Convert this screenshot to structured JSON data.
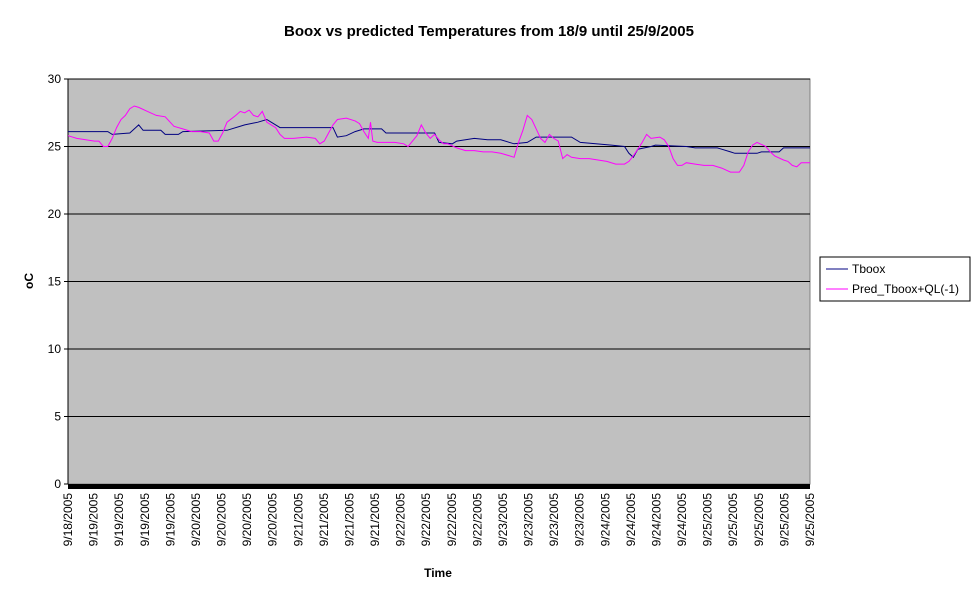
{
  "chart_data": {
    "type": "line",
    "title": "Boox vs predicted Temperatures from 18/9 until 25/9/2005",
    "xlabel": "Time",
    "ylabel": "oC",
    "ylim": [
      0,
      30
    ],
    "yticks": [
      0,
      5,
      10,
      15,
      20,
      25,
      30
    ],
    "grid": true,
    "legend_position": "right",
    "plot_background": "#c0c0c0",
    "x_tick_labels": [
      "9/18/2005",
      "9/19/2005",
      "9/19/2005",
      "9/19/2005",
      "9/19/2005",
      "9/20/2005",
      "9/20/2005",
      "9/20/2005",
      "9/20/2005",
      "9/21/2005",
      "9/21/2005",
      "9/21/2005",
      "9/21/2005",
      "9/22/2005",
      "9/22/2005",
      "9/22/2005",
      "9/22/2005",
      "9/23/2005",
      "9/23/2005",
      "9/23/2005",
      "9/23/2005",
      "9/24/2005",
      "9/24/2005",
      "9/24/2005",
      "9/24/2005",
      "9/25/2005",
      "9/25/2005",
      "9/25/2005",
      "9/25/2005",
      "9/25/2005"
    ],
    "x_range": [
      "2005-09-18 00:00",
      "2005-09-25 00:00"
    ],
    "series": [
      {
        "name": "Tboox",
        "color": "#000080",
        "points": [
          [
            "2005-09-18 00:00",
            26.1
          ],
          [
            "2005-09-18 09:00",
            26.1
          ],
          [
            "2005-09-18 10:00",
            25.9
          ],
          [
            "2005-09-18 14:00",
            26.0
          ],
          [
            "2005-09-18 15:00",
            26.3
          ],
          [
            "2005-09-18 16:00",
            26.6
          ],
          [
            "2005-09-18 17:00",
            26.2
          ],
          [
            "2005-09-18 21:00",
            26.2
          ],
          [
            "2005-09-18 22:00",
            25.9
          ],
          [
            "2005-09-19 01:00",
            25.9
          ],
          [
            "2005-09-19 02:00",
            26.1
          ],
          [
            "2005-09-19 12:00",
            26.2
          ],
          [
            "2005-09-19 16:00",
            26.6
          ],
          [
            "2005-09-19 19:00",
            26.8
          ],
          [
            "2005-09-19 21:00",
            27.0
          ],
          [
            "2005-09-19 22:00",
            26.8
          ],
          [
            "2005-09-20 00:00",
            26.4
          ],
          [
            "2005-09-20 12:00",
            26.4
          ],
          [
            "2005-09-20 13:00",
            25.7
          ],
          [
            "2005-09-20 15:00",
            25.8
          ],
          [
            "2005-09-20 17:00",
            26.1
          ],
          [
            "2005-09-20 19:00",
            26.3
          ],
          [
            "2005-09-20 23:00",
            26.3
          ],
          [
            "2005-09-21 00:00",
            26.0
          ],
          [
            "2005-09-21 11:00",
            26.0
          ],
          [
            "2005-09-21 12:00",
            25.3
          ],
          [
            "2005-09-21 15:00",
            25.2
          ],
          [
            "2005-09-21 16:00",
            25.4
          ],
          [
            "2005-09-21 20:00",
            25.6
          ],
          [
            "2005-09-21 23:00",
            25.5
          ],
          [
            "2005-09-22 02:00",
            25.5
          ],
          [
            "2005-09-22 05:00",
            25.2
          ],
          [
            "2005-09-22 08:00",
            25.3
          ],
          [
            "2005-09-22 10:00",
            25.7
          ],
          [
            "2005-09-22 18:00",
            25.7
          ],
          [
            "2005-09-22 20:00",
            25.3
          ],
          [
            "2005-09-23 03:00",
            25.1
          ],
          [
            "2005-09-23 06:00",
            25.0
          ],
          [
            "2005-09-23 07:00",
            24.5
          ],
          [
            "2005-09-23 08:00",
            24.2
          ],
          [
            "2005-09-23 09:00",
            24.8
          ],
          [
            "2005-09-23 12:00",
            25.0
          ],
          [
            "2005-09-23 13:00",
            25.1
          ],
          [
            "2005-09-23 20:00",
            25.0
          ],
          [
            "2005-09-23 22:00",
            24.9
          ],
          [
            "2005-09-24 03:00",
            24.9
          ],
          [
            "2005-09-24 04:00",
            24.8
          ],
          [
            "2005-09-24 06:00",
            24.6
          ],
          [
            "2005-09-24 07:00",
            24.5
          ],
          [
            "2005-09-24 12:00",
            24.5
          ],
          [
            "2005-09-24 13:00",
            24.6
          ],
          [
            "2005-09-24 17:00",
            24.6
          ],
          [
            "2005-09-24 18:00",
            24.9
          ],
          [
            "2005-09-25 00:00",
            24.9
          ]
        ]
      },
      {
        "name": "Pred_Tboox+QL(-1)",
        "color": "#ff00ff",
        "points": [
          [
            "2005-09-18 00:00",
            25.8
          ],
          [
            "2005-09-18 02:00",
            25.6
          ],
          [
            "2005-09-18 04:00",
            25.5
          ],
          [
            "2005-09-18 06:00",
            25.4
          ],
          [
            "2005-09-18 07:00",
            25.4
          ],
          [
            "2005-09-18 08:00",
            25.0
          ],
          [
            "2005-09-18 09:00",
            25.0
          ],
          [
            "2005-09-18 10:00",
            25.6
          ],
          [
            "2005-09-18 11:00",
            26.4
          ],
          [
            "2005-09-18 12:00",
            27.0
          ],
          [
            "2005-09-18 13:00",
            27.3
          ],
          [
            "2005-09-18 14:00",
            27.8
          ],
          [
            "2005-09-18 15:00",
            28.0
          ],
          [
            "2005-09-18 16:00",
            27.9
          ],
          [
            "2005-09-18 18:00",
            27.6
          ],
          [
            "2005-09-18 20:00",
            27.3
          ],
          [
            "2005-09-18 22:00",
            27.2
          ],
          [
            "2005-09-19 00:00",
            26.5
          ],
          [
            "2005-09-19 02:00",
            26.3
          ],
          [
            "2005-09-19 04:00",
            26.1
          ],
          [
            "2005-09-19 06:00",
            26.1
          ],
          [
            "2005-09-19 08:00",
            26.0
          ],
          [
            "2005-09-19 09:00",
            25.4
          ],
          [
            "2005-09-19 10:00",
            25.4
          ],
          [
            "2005-09-19 11:00",
            26.0
          ],
          [
            "2005-09-19 12:00",
            26.8
          ],
          [
            "2005-09-19 14:00",
            27.3
          ],
          [
            "2005-09-19 15:00",
            27.6
          ],
          [
            "2005-09-19 16:00",
            27.5
          ],
          [
            "2005-09-19 17:00",
            27.7
          ],
          [
            "2005-09-19 18:00",
            27.3
          ],
          [
            "2005-09-19 19:00",
            27.2
          ],
          [
            "2005-09-19 20:00",
            27.6
          ],
          [
            "2005-09-19 21:00",
            26.8
          ],
          [
            "2005-09-19 22:00",
            26.6
          ],
          [
            "2005-09-19 23:00",
            26.4
          ],
          [
            "2005-09-20 00:00",
            25.9
          ],
          [
            "2005-09-20 01:00",
            25.6
          ],
          [
            "2005-09-20 03:00",
            25.6
          ],
          [
            "2005-09-20 06:00",
            25.7
          ],
          [
            "2005-09-20 08:00",
            25.6
          ],
          [
            "2005-09-20 09:00",
            25.2
          ],
          [
            "2005-09-20 10:00",
            25.4
          ],
          [
            "2005-09-20 11:00",
            26.0
          ],
          [
            "2005-09-20 12:00",
            26.6
          ],
          [
            "2005-09-20 13:00",
            27.0
          ],
          [
            "2005-09-20 15:00",
            27.1
          ],
          [
            "2005-09-20 17:00",
            26.9
          ],
          [
            "2005-09-20 18:00",
            26.7
          ],
          [
            "2005-09-20 19:00",
            26.1
          ],
          [
            "2005-09-20 20:00",
            25.6
          ],
          [
            "2005-09-20 20:30",
            26.8
          ],
          [
            "2005-09-20 21:00",
            25.4
          ],
          [
            "2005-09-20 22:00",
            25.3
          ],
          [
            "2005-09-21 00:00",
            25.3
          ],
          [
            "2005-09-21 02:00",
            25.3
          ],
          [
            "2005-09-21 04:00",
            25.2
          ],
          [
            "2005-09-21 05:00",
            25.0
          ],
          [
            "2005-09-21 06:00",
            25.4
          ],
          [
            "2005-09-21 07:00",
            25.8
          ],
          [
            "2005-09-21 08:00",
            26.6
          ],
          [
            "2005-09-21 09:00",
            26.0
          ],
          [
            "2005-09-21 10:00",
            25.6
          ],
          [
            "2005-09-21 11:00",
            25.9
          ],
          [
            "2005-09-21 12:00",
            25.5
          ],
          [
            "2005-09-21 13:00",
            25.2
          ],
          [
            "2005-09-21 14:00",
            25.2
          ],
          [
            "2005-09-21 16:00",
            24.9
          ],
          [
            "2005-09-21 18:00",
            24.7
          ],
          [
            "2005-09-21 20:00",
            24.7
          ],
          [
            "2005-09-21 22:00",
            24.6
          ],
          [
            "2005-09-22 00:00",
            24.6
          ],
          [
            "2005-09-22 02:00",
            24.5
          ],
          [
            "2005-09-22 04:00",
            24.3
          ],
          [
            "2005-09-22 05:00",
            24.2
          ],
          [
            "2005-09-22 06:00",
            25.3
          ],
          [
            "2005-09-22 07:00",
            26.2
          ],
          [
            "2005-09-22 08:00",
            27.3
          ],
          [
            "2005-09-22 09:00",
            27.0
          ],
          [
            "2005-09-22 10:00",
            26.3
          ],
          [
            "2005-09-22 11:00",
            25.6
          ],
          [
            "2005-09-22 12:00",
            25.3
          ],
          [
            "2005-09-22 13:00",
            25.9
          ],
          [
            "2005-09-22 14:00",
            25.6
          ],
          [
            "2005-09-22 15:00",
            25.4
          ],
          [
            "2005-09-22 16:00",
            24.1
          ],
          [
            "2005-09-22 17:00",
            24.4
          ],
          [
            "2005-09-22 18:00",
            24.2
          ],
          [
            "2005-09-22 20:00",
            24.1
          ],
          [
            "2005-09-22 22:00",
            24.1
          ],
          [
            "2005-09-23 00:00",
            24.0
          ],
          [
            "2005-09-23 02:00",
            23.9
          ],
          [
            "2005-09-23 04:00",
            23.7
          ],
          [
            "2005-09-23 06:00",
            23.7
          ],
          [
            "2005-09-23 07:00",
            23.9
          ],
          [
            "2005-09-23 08:00",
            24.3
          ],
          [
            "2005-09-23 09:00",
            24.8
          ],
          [
            "2005-09-23 10:00",
            25.3
          ],
          [
            "2005-09-23 11:00",
            25.9
          ],
          [
            "2005-09-23 12:00",
            25.6
          ],
          [
            "2005-09-23 14:00",
            25.7
          ],
          [
            "2005-09-23 15:00",
            25.5
          ],
          [
            "2005-09-23 16:00",
            25.0
          ],
          [
            "2005-09-23 17:00",
            24.1
          ],
          [
            "2005-09-23 18:00",
            23.6
          ],
          [
            "2005-09-23 19:00",
            23.6
          ],
          [
            "2005-09-23 20:00",
            23.8
          ],
          [
            "2005-09-23 22:00",
            23.7
          ],
          [
            "2005-09-24 00:00",
            23.6
          ],
          [
            "2005-09-24 02:00",
            23.6
          ],
          [
            "2005-09-24 04:00",
            23.4
          ],
          [
            "2005-09-24 06:00",
            23.1
          ],
          [
            "2005-09-24 08:00",
            23.1
          ],
          [
            "2005-09-24 09:00",
            23.6
          ],
          [
            "2005-09-24 10:00",
            24.6
          ],
          [
            "2005-09-24 11:00",
            25.1
          ],
          [
            "2005-09-24 12:00",
            25.3
          ],
          [
            "2005-09-24 14:00",
            25.0
          ],
          [
            "2005-09-24 15:00",
            24.6
          ],
          [
            "2005-09-24 16:00",
            24.3
          ],
          [
            "2005-09-24 18:00",
            24.0
          ],
          [
            "2005-09-24 19:00",
            23.9
          ],
          [
            "2005-09-24 20:00",
            23.6
          ],
          [
            "2005-09-24 21:00",
            23.5
          ],
          [
            "2005-09-24 22:00",
            23.8
          ],
          [
            "2005-09-25 00:00",
            23.8
          ]
        ]
      }
    ]
  }
}
